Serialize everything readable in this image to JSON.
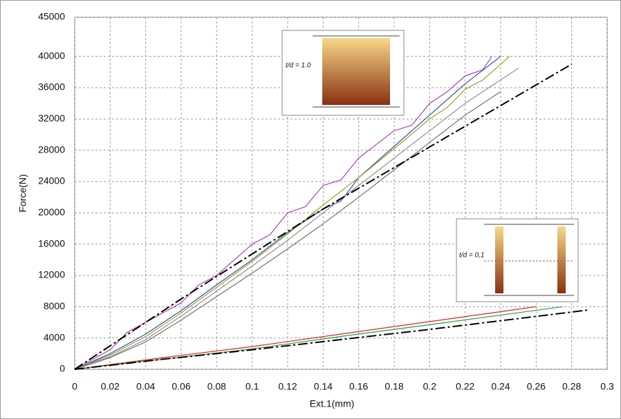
{
  "chart_data": {
    "type": "line",
    "xlabel": "Ext.1(mm)",
    "ylabel": "Force(N)",
    "xlim": [
      0,
      0.3
    ],
    "xticks": [
      0,
      0.02,
      0.04,
      0.06,
      0.08,
      0.1,
      0.12,
      0.14,
      0.16,
      0.18,
      0.2,
      0.22,
      0.24,
      0.26,
      0.28,
      0.3
    ],
    "ylim": [
      0,
      45000
    ],
    "yticks": [
      0,
      4000,
      8000,
      12000,
      16000,
      20000,
      24000,
      28000,
      32000,
      36000,
      40000,
      45000
    ],
    "grid": true,
    "annotations": [
      "t/d = 1.0",
      "t/d = 0,1"
    ],
    "series": [
      {
        "color": "#b040b0",
        "x": [
          0,
          0.02,
          0.03,
          0.04,
          0.06,
          0.07,
          0.08,
          0.1,
          0.11,
          0.12,
          0.13,
          0.14,
          0.15,
          0.16,
          0.18,
          0.19,
          0.2,
          0.21,
          0.22,
          0.23,
          0.235
        ],
        "values": [
          0,
          2500,
          4800,
          6000,
          8500,
          10800,
          12000,
          16000,
          17200,
          20000,
          20800,
          23500,
          24200,
          27000,
          30500,
          31200,
          34000,
          35500,
          37500,
          38300,
          40000
        ]
      },
      {
        "color": "#3050b0",
        "x": [
          0,
          0.02,
          0.04,
          0.06,
          0.08,
          0.1,
          0.12,
          0.14,
          0.15,
          0.16,
          0.18,
          0.2,
          0.22,
          0.24
        ],
        "values": [
          0,
          2000,
          4500,
          7500,
          10800,
          14000,
          17500,
          20500,
          21500,
          24500,
          28500,
          32500,
          36500,
          40000
        ]
      },
      {
        "color": "#a0a020",
        "x": [
          0,
          0.02,
          0.04,
          0.06,
          0.08,
          0.1,
          0.12,
          0.14,
          0.16,
          0.18,
          0.2,
          0.21,
          0.22,
          0.23,
          0.245
        ],
        "values": [
          0,
          1800,
          4200,
          7200,
          10500,
          13800,
          17300,
          21000,
          24500,
          28200,
          32000,
          33500,
          35800,
          37000,
          40000
        ]
      },
      {
        "color": "#909090",
        "x": [
          0,
          0.02,
          0.04,
          0.06,
          0.08,
          0.1,
          0.12,
          0.14,
          0.16,
          0.18,
          0.2,
          0.22,
          0.24,
          0.25
        ],
        "values": [
          0,
          1600,
          3800,
          6800,
          10000,
          13200,
          16500,
          20000,
          23500,
          27000,
          30500,
          34000,
          37000,
          38500
        ]
      },
      {
        "color": "#707070",
        "x": [
          0,
          0.02,
          0.04,
          0.06,
          0.08,
          0.1,
          0.12,
          0.14,
          0.16,
          0.18,
          0.2,
          0.22,
          0.24
        ],
        "values": [
          0,
          1500,
          3500,
          6300,
          9300,
          12300,
          15400,
          18600,
          22000,
          25500,
          29000,
          32500,
          35500
        ]
      },
      {
        "color": "#000000",
        "style": "dash-dot",
        "x": [
          0,
          0.06,
          0.14,
          0.28
        ],
        "values": [
          0,
          9000,
          20500,
          39000
        ]
      },
      {
        "color": "#e02020",
        "x": [
          0,
          0.05,
          0.1,
          0.15,
          0.2,
          0.26
        ],
        "values": [
          0,
          1500,
          2900,
          4500,
          6100,
          8000
        ]
      },
      {
        "color": "#20a040",
        "x": [
          0,
          0.05,
          0.1,
          0.15,
          0.2,
          0.275
        ],
        "values": [
          0,
          1300,
          2600,
          4200,
          5700,
          8000
        ]
      },
      {
        "color": "#000000",
        "style": "dash-dot",
        "x": [
          0,
          0.05,
          0.1,
          0.2,
          0.29
        ],
        "values": [
          0,
          1300,
          2500,
          5100,
          7600
        ]
      }
    ]
  }
}
